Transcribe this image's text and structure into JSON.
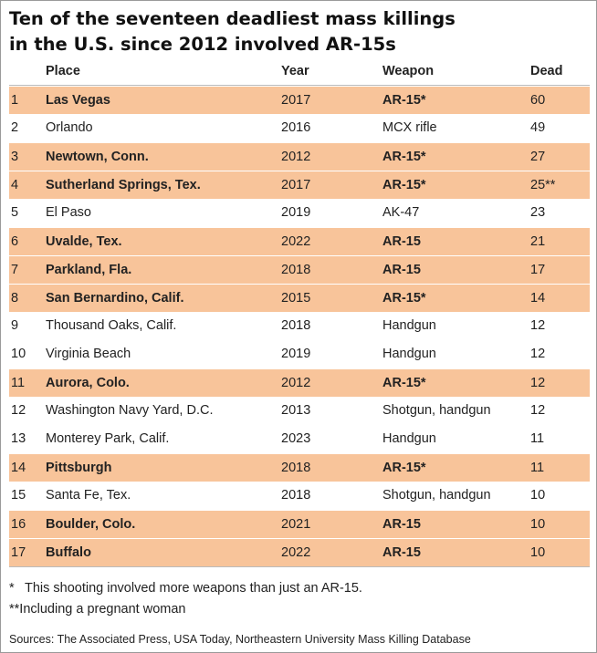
{
  "title_line1": "Ten of the seventeen deadliest mass killings",
  "title_line2": "in the U.S. since 2012 involved AR-15s",
  "columns": {
    "place": "Place",
    "year": "Year",
    "weapon": "Weapon",
    "dead": "Dead"
  },
  "highlight_color": "#f8c49a",
  "chart_data": {
    "type": "table",
    "title": "Ten of the seventeen deadliest mass killings in the U.S. since 2012 involved AR-15s",
    "columns": [
      "Place",
      "Year",
      "Weapon",
      "Dead"
    ],
    "rows": [
      {
        "rank": "1",
        "place": "Las Vegas",
        "year": "2017",
        "weapon": "AR-15*",
        "dead": "60",
        "highlight": true
      },
      {
        "rank": "2",
        "place": "Orlando",
        "year": "2016",
        "weapon": "MCX rifle",
        "dead": "49",
        "highlight": false
      },
      {
        "rank": "3",
        "place": "Newtown, Conn.",
        "year": "2012",
        "weapon": "AR-15*",
        "dead": "27",
        "highlight": true
      },
      {
        "rank": "4",
        "place": "Sutherland Springs, Tex.",
        "year": "2017",
        "weapon": "AR-15*",
        "dead": "25**",
        "highlight": true
      },
      {
        "rank": "5",
        "place": "El Paso",
        "year": "2019",
        "weapon": "AK-47",
        "dead": "23",
        "highlight": false
      },
      {
        "rank": "6",
        "place": "Uvalde, Tex.",
        "year": "2022",
        "weapon": "AR-15",
        "dead": "21",
        "highlight": true
      },
      {
        "rank": "7",
        "place": "Parkland, Fla.",
        "year": "2018",
        "weapon": "AR-15",
        "dead": "17",
        "highlight": true
      },
      {
        "rank": "8",
        "place": "San Bernardino, Calif.",
        "year": "2015",
        "weapon": "AR-15*",
        "dead": "14",
        "highlight": true
      },
      {
        "rank": "9",
        "place": "Thousand Oaks, Calif.",
        "year": "2018",
        "weapon": "Handgun",
        "dead": "12",
        "highlight": false
      },
      {
        "rank": "10",
        "place": "Virginia Beach",
        "year": "2019",
        "weapon": "Handgun",
        "dead": "12",
        "highlight": false
      },
      {
        "rank": "11",
        "place": "Aurora, Colo.",
        "year": "2012",
        "weapon": "AR-15*",
        "dead": "12",
        "highlight": true
      },
      {
        "rank": "12",
        "place": "Washington Navy Yard, D.C.",
        "year": "2013",
        "weapon": "Shotgun, handgun",
        "dead": "12",
        "highlight": false
      },
      {
        "rank": "13",
        "place": "Monterey Park, Calif.",
        "year": "2023",
        "weapon": "Handgun",
        "dead": "11",
        "highlight": false
      },
      {
        "rank": "14",
        "place": "Pittsburgh",
        "year": "2018",
        "weapon": "AR-15*",
        "dead": "11",
        "highlight": true
      },
      {
        "rank": "15",
        "place": "Santa Fe, Tex.",
        "year": "2018",
        "weapon": "Shotgun, handgun",
        "dead": "10",
        "highlight": false
      },
      {
        "rank": "16",
        "place": "Boulder, Colo.",
        "year": "2021",
        "weapon": "AR-15",
        "dead": "10",
        "highlight": true
      },
      {
        "rank": "17",
        "place": "Buffalo",
        "year": "2022",
        "weapon": "AR-15",
        "dead": "10",
        "highlight": true
      }
    ]
  },
  "notes": [
    {
      "mark": "*",
      "text": "This shooting involved more weapons than just an AR-15."
    },
    {
      "mark": "**",
      "text": "Including a pregnant woman"
    }
  ],
  "source": "Sources: The Associated Press, USA Today, Northeastern University Mass Killing Database"
}
